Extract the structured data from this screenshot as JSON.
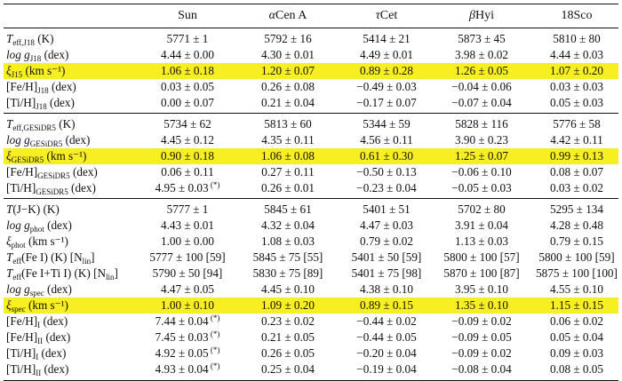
{
  "headers": {
    "c1": "Sun",
    "c2_greek": "α",
    "c2_rest": "Cen A",
    "c3_greek": "τ",
    "c3_rest": "Cet",
    "c4_greek": "β",
    "c4_rest": "Hyi",
    "c5": "18Sco"
  },
  "star": "(*)",
  "sections": [
    {
      "rows": [
        {
          "sym": "T",
          "sub": "eff,J18",
          "unit": " (K)",
          "hl": false,
          "vals": [
            "5771 ± 1",
            "5792 ± 16",
            "5414 ± 21",
            "5873 ± 45",
            "5810 ± 80"
          ]
        },
        {
          "sym": "log g",
          "sub": "J18",
          "unit": " (dex)",
          "hl": false,
          "vals": [
            "4.44 ± 0.00",
            "4.30 ± 0.01",
            "4.49 ± 0.01",
            "3.98 ± 0.02",
            "4.44 ± 0.03"
          ]
        },
        {
          "sym": "ξ",
          "sub": "J15",
          "unit": " (km s⁻¹)",
          "hl": true,
          "vals": [
            "1.06 ± 0.18",
            "1.20 ± 0.07",
            "0.89 ± 0.28",
            "1.26 ± 0.05",
            "1.07 ± 0.20"
          ]
        },
        {
          "sym": "[Fe/H]",
          "sub": "J18",
          "unit": " (dex)",
          "hl": false,
          "plain": true,
          "vals": [
            "0.03 ± 0.05",
            "0.26 ± 0.08",
            "−0.49 ± 0.03",
            "−0.04 ± 0.06",
            "0.03 ± 0.03"
          ]
        },
        {
          "sym": "[Ti/H]",
          "sub": "J18",
          "unit": " (dex)",
          "hl": false,
          "plain": true,
          "vals": [
            "0.00 ± 0.07",
            "0.21 ± 0.04",
            "−0.17 ± 0.07",
            "−0.07 ± 0.04",
            "0.05 ± 0.03"
          ]
        }
      ]
    },
    {
      "rows": [
        {
          "sym": "T",
          "sub": "eff,GESiDR5",
          "unit": " (K)",
          "hl": false,
          "vals": [
            "5734 ± 62",
            "5813 ± 60",
            "5344 ± 59",
            "5828 ± 116",
            "5776 ± 58"
          ]
        },
        {
          "sym": "log g",
          "sub": "GESiDR5",
          "unit": " (dex)",
          "hl": false,
          "vals": [
            "4.45 ± 0.12",
            "4.35 ± 0.11",
            "4.56 ± 0.11",
            "3.90 ± 0.23",
            "4.42 ± 0.11"
          ]
        },
        {
          "sym": "ξ",
          "sub": "GESiDR5",
          "unit": " (km s⁻¹)",
          "hl": true,
          "vals": [
            "0.90 ± 0.18",
            "1.06 ± 0.08",
            "0.61 ± 0.30",
            "1.25 ± 0.07",
            "0.99 ± 0.13"
          ]
        },
        {
          "sym": "[Fe/H]",
          "sub": "GESiDR5",
          "unit": " (dex)",
          "hl": false,
          "plain": true,
          "vals": [
            "0.06 ± 0.11",
            "0.27 ± 0.11",
            "−0.50 ± 0.13",
            "−0.06 ± 0.10",
            "0.08 ± 0.07"
          ]
        },
        {
          "sym": "[Ti/H]",
          "sub": "GESiDR5",
          "unit": " (dex)",
          "hl": false,
          "plain": true,
          "star0": true,
          "vals": [
            "4.95 ± 0.03",
            "0.26 ± 0.01",
            "−0.23 ± 0.04",
            "−0.05 ± 0.03",
            "0.03 ± 0.02"
          ]
        }
      ]
    },
    {
      "rows": [
        {
          "sym": "T",
          "sub": "",
          "unit": "(J−K) (K)",
          "hl": false,
          "vals": [
            "5777 ± 1",
            "5845 ± 61",
            "5401 ± 51",
            "5702 ± 80",
            "5295 ± 134"
          ]
        },
        {
          "sym": "log g",
          "sub": "phot",
          "unit": " (dex)",
          "hl": false,
          "vals": [
            "4.43 ± 0.01",
            "4.32 ± 0.04",
            "4.47 ± 0.03",
            "3.91 ± 0.04",
            "4.28 ± 0.48"
          ]
        },
        {
          "sym": "ξ",
          "sub": "phot",
          "unit": " (km s⁻¹)",
          "hl": false,
          "vals": [
            "1.00 ± 0.00",
            "1.08 ± 0.03",
            "0.79 ± 0.02",
            "1.13 ± 0.03",
            "0.79 ± 0.15"
          ]
        },
        {
          "sym": "T",
          "sub": "eff",
          "unit": "(Fe I) (K) [N",
          "unit2": "lin",
          "unit3": "]",
          "hl": false,
          "vals": [
            "5777 ± 100 [59]",
            "5845 ± 75 [55]",
            "5401 ± 50 [59]",
            "5800 ± 100 [57]",
            "5800 ± 100 [59]"
          ]
        },
        {
          "sym": "T",
          "sub": "eff",
          "unit": "(Fe I+Ti I) (K) [N",
          "unit2": "lin",
          "unit3": "]",
          "hl": false,
          "vals": [
            "5790 ± 50 [94]",
            "5830 ± 75 [89]",
            "5401 ± 75 [98]",
            "5870 ± 100 [87]",
            "5875 ± 100 [100]"
          ]
        },
        {
          "sym": "log g",
          "sub": "spec",
          "unit": " (dex)",
          "hl": false,
          "vals": [
            "4.47 ± 0.05",
            "4.45 ± 0.10",
            "4.38 ± 0.10",
            "3.95 ± 0.10",
            "4.55 ± 0.10"
          ]
        },
        {
          "sym": "ξ",
          "sub": "spec",
          "unit": " (km s⁻¹)",
          "hl": true,
          "vals": [
            "1.00 ± 0.10",
            "1.09 ± 0.20",
            "0.89 ± 0.15",
            "1.35 ± 0.10",
            "1.15 ± 0.15"
          ]
        },
        {
          "sym": "[Fe/H]",
          "sub": "I",
          "unit": " (dex)",
          "hl": false,
          "plain": true,
          "star0": true,
          "vals": [
            "7.44 ± 0.04",
            "0.23 ± 0.02",
            "−0.44 ± 0.02",
            "−0.09 ± 0.02",
            "0.06 ± 0.02"
          ]
        },
        {
          "sym": "[Fe/H]",
          "sub": "II",
          "unit": " (dex)",
          "hl": false,
          "plain": true,
          "star0": true,
          "vals": [
            "7.45 ± 0.03",
            "0.21 ± 0.05",
            "−0.44 ± 0.05",
            "−0.09 ± 0.05",
            "0.05 ± 0.04"
          ]
        },
        {
          "sym": "[Ti/H]",
          "sub": "I",
          "unit": " (dex)",
          "hl": false,
          "plain": true,
          "star0": true,
          "vals": [
            "4.92 ± 0.05",
            "0.26 ± 0.05",
            "−0.20 ± 0.04",
            "−0.09 ± 0.02",
            "0.09 ± 0.03"
          ]
        },
        {
          "sym": "[Ti/H]",
          "sub": "II",
          "unit": " (dex)",
          "hl": false,
          "plain": true,
          "star0": true,
          "vals": [
            "4.93 ± 0.04",
            "0.25 ± 0.04",
            "−0.19 ± 0.04",
            "−0.08 ± 0.04",
            "0.08 ± 0.05"
          ]
        }
      ]
    }
  ]
}
